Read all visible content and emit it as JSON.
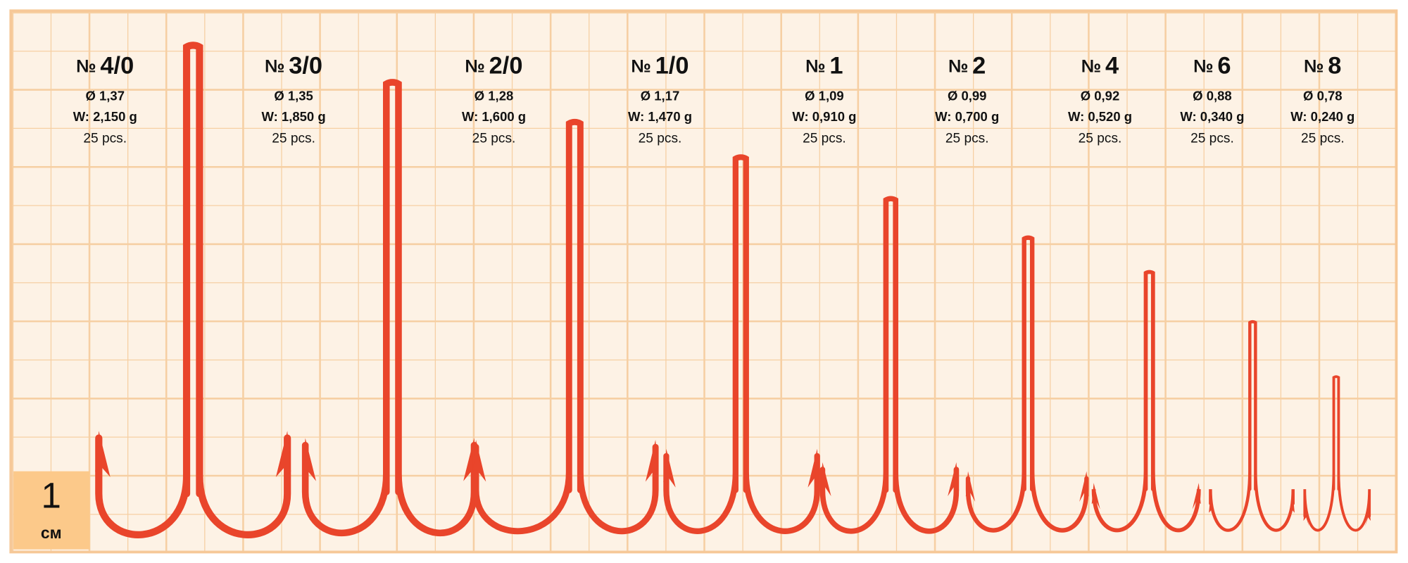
{
  "scale": {
    "value": "1",
    "unit": "см"
  },
  "hooks": [
    {
      "prefix": "№",
      "size": "4/0",
      "diameter": "Ø 1,37",
      "weight": "W: 2,150 g",
      "quantity": "25 pcs."
    },
    {
      "prefix": "№",
      "size": "3/0",
      "diameter": "Ø 1,35",
      "weight": "W: 1,850 g",
      "quantity": "25 pcs."
    },
    {
      "prefix": "№",
      "size": "2/0",
      "diameter": "Ø 1,28",
      "weight": "W: 1,600 g",
      "quantity": "25 pcs."
    },
    {
      "prefix": "№",
      "size": "1/0",
      "diameter": "Ø 1,17",
      "weight": "W: 1,470 g",
      "quantity": "25 pcs."
    },
    {
      "prefix": "№",
      "size": "1",
      "diameter": "Ø 1,09",
      "weight": "W: 0,910 g",
      "quantity": "25 pcs."
    },
    {
      "prefix": "№",
      "size": "2",
      "diameter": "Ø 0,99",
      "weight": "W: 0,700 g",
      "quantity": "25 pcs."
    },
    {
      "prefix": "№",
      "size": "4",
      "diameter": "Ø 0,92",
      "weight": "W: 0,520 g",
      "quantity": "25 pcs."
    },
    {
      "prefix": "№",
      "size": "6",
      "diameter": "Ø 0,88",
      "weight": "W: 0,340 g",
      "quantity": "25 pcs."
    },
    {
      "prefix": "№",
      "size": "8",
      "diameter": "Ø 0,78",
      "weight": "W: 0,240 g",
      "quantity": "25 pcs."
    }
  ]
}
